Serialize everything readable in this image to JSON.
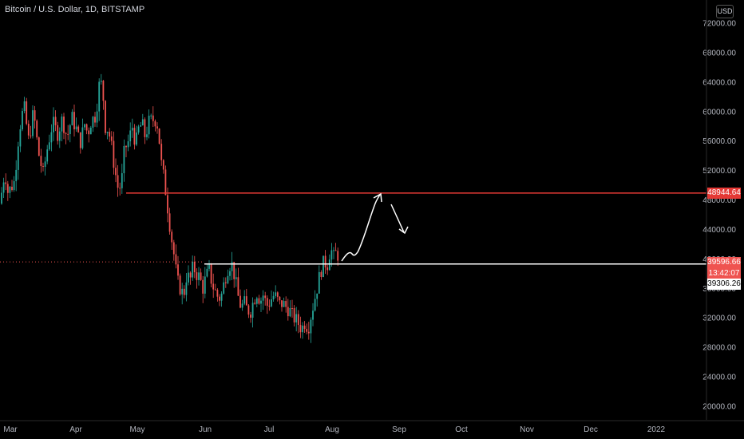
{
  "header": {
    "title": "Bitcoin / U.S. Dollar, 1D, BITSTAMP",
    "currency_button": "USD"
  },
  "price_tags": {
    "resistance": "48944.64",
    "last_price": "39596.66",
    "countdown": "13:42:07",
    "support": "39306.26"
  },
  "colors": {
    "background": "#000000",
    "up": "#26a69a",
    "down": "#ef5350",
    "resistance_line": "#e53935",
    "support_line": "#ffffff"
  },
  "chart_data": {
    "type": "candlestick",
    "title": "Bitcoin / U.S. Dollar, 1D, BITSTAMP",
    "y_ticks": [
      20000,
      24000,
      28000,
      32000,
      36000,
      40000,
      44000,
      48000,
      52000,
      56000,
      60000,
      64000,
      68000,
      72000
    ],
    "y_tick_labels": [
      "20000.00",
      "24000.00",
      "28000.00",
      "32000.00",
      "36000.00",
      "40000.00",
      "44000.00",
      "48000.00",
      "52000.00",
      "56000.00",
      "60000.00",
      "64000.00",
      "68000.00",
      "72000.00"
    ],
    "x_ticks": [
      "Mar",
      "Apr",
      "May",
      "Jun",
      "Jul",
      "Aug",
      "Sep",
      "Oct",
      "Nov",
      "Dec",
      "2022"
    ],
    "ylim": [
      18000,
      74000
    ],
    "horizontal_lines": [
      {
        "name": "resistance",
        "value": 48944.64
      },
      {
        "name": "support",
        "value": 39306.26
      }
    ],
    "last_price": 39596.66,
    "price_path": [
      [
        0,
        47500
      ],
      [
        6,
        52000
      ],
      [
        10,
        49000
      ],
      [
        18,
        50500
      ],
      [
        24,
        57500
      ],
      [
        30,
        60800
      ],
      [
        36,
        56000
      ],
      [
        42,
        60000
      ],
      [
        48,
        54500
      ],
      [
        54,
        51500
      ],
      [
        60,
        55500
      ],
      [
        66,
        58500
      ],
      [
        72,
        57000
      ],
      [
        78,
        59000
      ],
      [
        84,
        56500
      ],
      [
        90,
        59200
      ],
      [
        96,
        57500
      ],
      [
        100,
        55600
      ],
      [
        106,
        58300
      ],
      [
        110,
        57000
      ],
      [
        114,
        58700
      ],
      [
        120,
        59500
      ],
      [
        124,
        63500
      ],
      [
        128,
        63800
      ],
      [
        132,
        58000
      ],
      [
        136,
        57500
      ],
      [
        140,
        55000
      ],
      [
        144,
        52000
      ],
      [
        148,
        49500
      ],
      [
        152,
        50000
      ],
      [
        156,
        55000
      ],
      [
        160,
        55600
      ],
      [
        166,
        58000
      ],
      [
        170,
        55500
      ],
      [
        174,
        57800
      ],
      [
        178,
        58300
      ],
      [
        182,
        56500
      ],
      [
        186,
        58500
      ],
      [
        190,
        58800
      ],
      [
        194,
        59000
      ],
      [
        198,
        58000
      ],
      [
        202,
        53000
      ],
      [
        206,
        50500
      ],
      [
        210,
        47000
      ],
      [
        214,
        43500
      ],
      [
        218,
        40500
      ],
      [
        222,
        37000
      ],
      [
        226,
        36000
      ],
      [
        230,
        35000
      ],
      [
        234,
        38000
      ],
      [
        238,
        37000
      ],
      [
        242,
        39000
      ],
      [
        246,
        38000
      ],
      [
        250,
        37500
      ],
      [
        254,
        36000
      ],
      [
        258,
        37500
      ],
      [
        262,
        38500
      ],
      [
        266,
        36500
      ],
      [
        270,
        35500
      ],
      [
        274,
        34600
      ],
      [
        278,
        35200
      ],
      [
        282,
        37500
      ],
      [
        286,
        39000
      ],
      [
        290,
        39500
      ],
      [
        294,
        37600
      ],
      [
        298,
        35000
      ],
      [
        302,
        33400
      ],
      [
        306,
        34000
      ],
      [
        310,
        33000
      ],
      [
        314,
        33000
      ],
      [
        318,
        34500
      ],
      [
        322,
        35500
      ],
      [
        326,
        34300
      ],
      [
        330,
        35200
      ],
      [
        334,
        33600
      ],
      [
        338,
        34200
      ],
      [
        342,
        35000
      ],
      [
        346,
        34800
      ],
      [
        350,
        33800
      ],
      [
        354,
        34000
      ],
      [
        358,
        33500
      ],
      [
        362,
        33200
      ],
      [
        366,
        32300
      ],
      [
        370,
        31800
      ],
      [
        374,
        31200
      ],
      [
        378,
        30500
      ],
      [
        382,
        31500
      ],
      [
        386,
        30600
      ],
      [
        390,
        32600
      ],
      [
        394,
        34500
      ],
      [
        398,
        36500
      ],
      [
        402,
        38500
      ],
      [
        406,
        39600
      ],
      [
        410,
        39200
      ],
      [
        414,
        41500
      ],
      [
        418,
        40200
      ],
      [
        422,
        41000
      ],
      [
        426,
        39600
      ]
    ]
  }
}
